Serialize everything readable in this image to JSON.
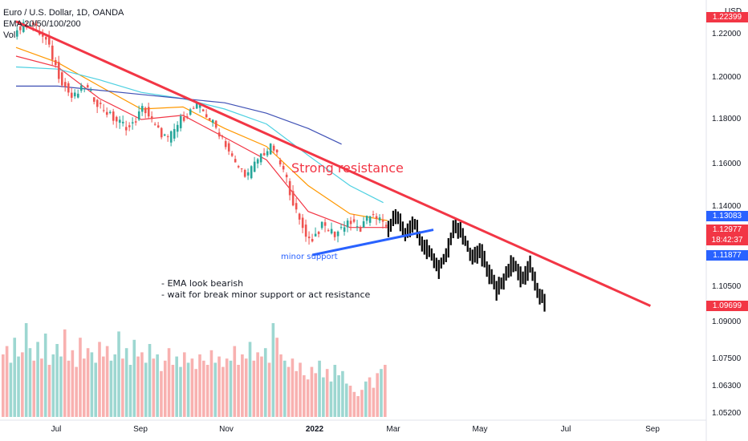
{
  "header": {
    "title": "Euro / U.S. Dollar, 1D, OANDA",
    "ema": "EMA 20/50/100/200",
    "vol": "Vol"
  },
  "annotations": {
    "strong_resistance": "Strong resistance",
    "minor_support": "minor support",
    "note_line1": "- EMA look bearish",
    "note_line2": "- wait for break minor support or act resistance"
  },
  "price_tags": {
    "top": "1.22399",
    "blue_upper": "1.13083",
    "current": "1.12977",
    "countdown": "18:42:37",
    "blue_lower": "1.11877",
    "bottom": "1.09699"
  },
  "colors": {
    "up_candle": "#26a69a",
    "down_candle": "#ef5350",
    "projection": "#000000",
    "resistance_line": "#f23645",
    "support_line": "#2962ff",
    "ema20": "#f23645",
    "ema50": "#ff9800",
    "ema100": "#4dd0e1",
    "ema200": "#3f51b5",
    "tag_red": "#f23645",
    "tag_blue": "#2962ff"
  },
  "chart_data": {
    "type": "candlestick",
    "currency": "USD",
    "y_ticks": [
      "1.22000",
      "1.20000",
      "1.18000",
      "1.16000",
      "1.14000",
      "1.10500",
      "1.09000",
      "1.07500",
      "1.06300",
      "1.05200"
    ],
    "x_ticks": [
      "Jul",
      "Sep",
      "Nov",
      "2022",
      "Mar",
      "May",
      "Jul",
      "Sep"
    ],
    "dates_month_index": [
      0,
      1,
      2,
      3,
      4,
      5,
      6,
      7,
      8,
      9,
      10,
      11,
      12,
      13,
      14,
      15,
      16
    ],
    "price_path": [
      [
        0.0,
        1.221
      ],
      [
        0.4,
        1.226
      ],
      [
        0.8,
        1.216
      ],
      [
        1.1,
        1.2
      ],
      [
        1.4,
        1.19
      ],
      [
        1.7,
        1.196
      ],
      [
        2.0,
        1.188
      ],
      [
        2.4,
        1.18
      ],
      [
        2.8,
        1.176
      ],
      [
        3.1,
        1.186
      ],
      [
        3.4,
        1.176
      ],
      [
        3.7,
        1.171
      ],
      [
        4.0,
        1.18
      ],
      [
        4.4,
        1.187
      ],
      [
        4.7,
        1.18
      ],
      [
        5.0,
        1.172
      ],
      [
        5.3,
        1.16
      ],
      [
        5.6,
        1.155
      ],
      [
        5.9,
        1.164
      ],
      [
        6.2,
        1.168
      ],
      [
        6.5,
        1.155
      ],
      [
        6.8,
        1.135
      ],
      [
        7.1,
        1.125
      ],
      [
        7.4,
        1.132
      ],
      [
        7.7,
        1.128
      ],
      [
        8.0,
        1.134
      ],
      [
        8.3,
        1.13
      ],
      [
        8.6,
        1.138
      ],
      [
        8.9,
        1.131
      ]
    ],
    "projection_path": [
      [
        8.9,
        1.131
      ],
      [
        9.1,
        1.136
      ],
      [
        9.3,
        1.128
      ],
      [
        9.5,
        1.134
      ],
      [
        9.7,
        1.125
      ],
      [
        9.9,
        1.12
      ],
      [
        10.1,
        1.113
      ],
      [
        10.3,
        1.12
      ],
      [
        10.5,
        1.133
      ],
      [
        10.7,
        1.127
      ],
      [
        10.9,
        1.118
      ],
      [
        11.1,
        1.121
      ],
      [
        11.3,
        1.112
      ],
      [
        11.5,
        1.103
      ],
      [
        11.7,
        1.11
      ],
      [
        11.9,
        1.116
      ],
      [
        12.1,
        1.108
      ],
      [
        12.3,
        1.114
      ],
      [
        12.5,
        1.103
      ],
      [
        12.7,
        1.097
      ]
    ],
    "ema20": [
      [
        0,
        1.21
      ],
      [
        1,
        1.205
      ],
      [
        2,
        1.19
      ],
      [
        3,
        1.18
      ],
      [
        4,
        1.182
      ],
      [
        5,
        1.172
      ],
      [
        6,
        1.162
      ],
      [
        7,
        1.138
      ],
      [
        8,
        1.131
      ],
      [
        8.9,
        1.131
      ]
    ],
    "ema50": [
      [
        0,
        1.214
      ],
      [
        1,
        1.207
      ],
      [
        2,
        1.196
      ],
      [
        3,
        1.185
      ],
      [
        4,
        1.186
      ],
      [
        5,
        1.176
      ],
      [
        6,
        1.168
      ],
      [
        7,
        1.15
      ],
      [
        8,
        1.137
      ],
      [
        8.9,
        1.134
      ]
    ],
    "ema100": [
      [
        0,
        1.205
      ],
      [
        1,
        1.204
      ],
      [
        2,
        1.199
      ],
      [
        3,
        1.193
      ],
      [
        4,
        1.19
      ],
      [
        5,
        1.185
      ],
      [
        6,
        1.178
      ],
      [
        7,
        1.164
      ],
      [
        8,
        1.15
      ],
      [
        8.8,
        1.142
      ]
    ],
    "ema200": [
      [
        0,
        1.196
      ],
      [
        1,
        1.196
      ],
      [
        2,
        1.194
      ],
      [
        3,
        1.192
      ],
      [
        4,
        1.19
      ],
      [
        5,
        1.188
      ],
      [
        6,
        1.183
      ],
      [
        7,
        1.176
      ],
      [
        7.8,
        1.169
      ]
    ],
    "volume": [
      30,
      34,
      26,
      38,
      29,
      31,
      45,
      33,
      27,
      36,
      28,
      40,
      25,
      30,
      35,
      29,
      42,
      27,
      32,
      24,
      38,
      28,
      33,
      31,
      26,
      36,
      29,
      34,
      27,
      30,
      41,
      28,
      33,
      25,
      37,
      29,
      31,
      26,
      35,
      28,
      30,
      22,
      27,
      33,
      25,
      29,
      24,
      31,
      26,
      28,
      23,
      30,
      27,
      25,
      32,
      26,
      29,
      24,
      28,
      27,
      34,
      25,
      30,
      28,
      36,
      27,
      31,
      29,
      33,
      26,
      45,
      38,
      30,
      27,
      24,
      28,
      22,
      26,
      20,
      18,
      24,
      21,
      27,
      19,
      23,
      17,
      25,
      20,
      22,
      16,
      15,
      12,
      10,
      13,
      17,
      19,
      14,
      21,
      23,
      25
    ],
    "lines": {
      "resistance": [
        [
          0.0,
          1.226
        ],
        [
          15.2,
          1.097
        ]
      ],
      "minor_support": [
        [
          7.1,
          1.119
        ],
        [
          10.0,
          1.13
        ]
      ]
    }
  }
}
